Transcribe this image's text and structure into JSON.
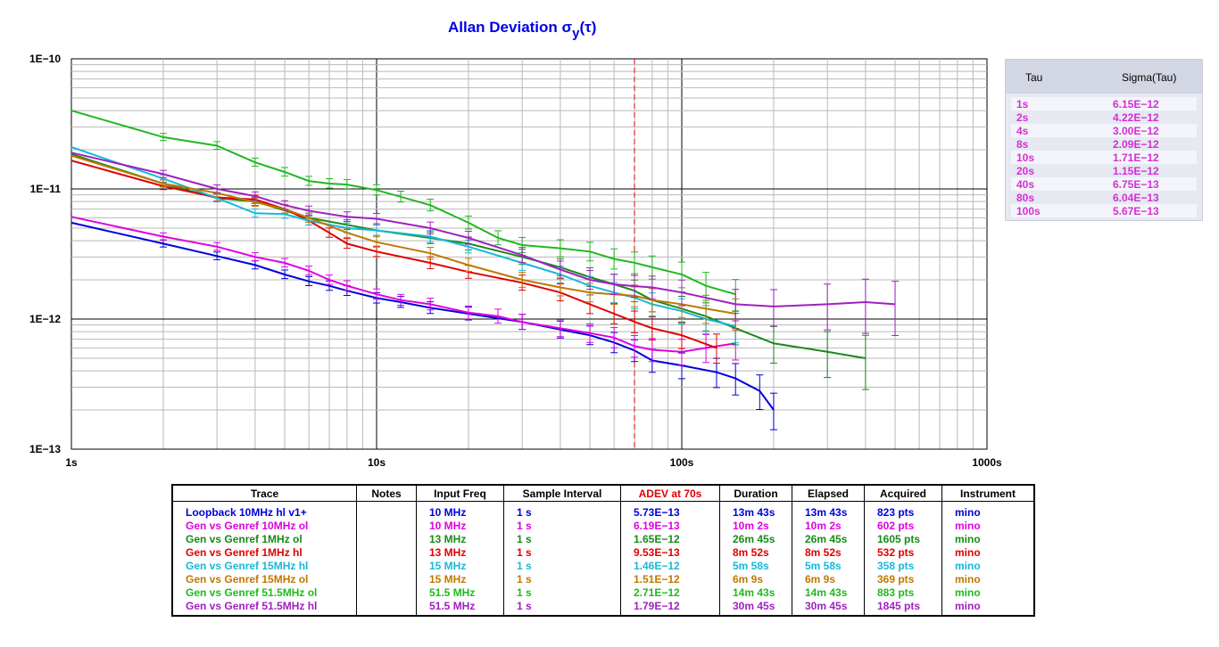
{
  "chart_data": {
    "type": "line",
    "title_main": "Allan Deviation σ",
    "title_sub": "y",
    "title_suffix": "(τ)",
    "x_scale": "log",
    "y_scale": "log",
    "xlim": [
      1,
      1000
    ],
    "ylim": [
      1e-13,
      1e-10
    ],
    "x_tick_labels": [
      "1s",
      "10s",
      "100s",
      "1000s"
    ],
    "y_tick_labels": [
      "1E−10",
      "1E−11",
      "1E−12",
      "1E−13"
    ],
    "marker_line_tau": 70,
    "grid": true,
    "series": [
      {
        "name": "Loopback 10MHz hl v1+",
        "color": "#0000dd",
        "x": [
          1,
          2,
          3,
          4,
          5,
          6,
          7,
          8,
          10,
          12,
          15,
          20,
          30,
          40,
          50,
          60,
          70,
          80,
          100,
          130,
          150,
          180,
          200
        ],
        "y": [
          5.5e-12,
          3.8e-12,
          3.05e-12,
          2.6e-12,
          2.2e-12,
          1.95e-12,
          1.8e-12,
          1.65e-12,
          1.45e-12,
          1.35e-12,
          1.22e-12,
          1.1e-12,
          9.5e-13,
          8.3e-13,
          7.5e-13,
          6.6e-13,
          5.73e-13,
          4.8e-13,
          4.4e-13,
          3.9e-13,
          3.5e-13,
          2.8e-13,
          2e-13
        ]
      },
      {
        "name": "Gen vs Genref 10MHz ol",
        "color": "#e000e0",
        "x": [
          1,
          2,
          3,
          4,
          5,
          6,
          7,
          8,
          10,
          12,
          15,
          20,
          25,
          30,
          40,
          50,
          60,
          70,
          80,
          100,
          120,
          150
        ],
        "y": [
          6.1e-12,
          4.3e-12,
          3.6e-12,
          3e-12,
          2.7e-12,
          2.35e-12,
          2e-12,
          1.8e-12,
          1.55e-12,
          1.4e-12,
          1.3e-12,
          1.12e-12,
          1.05e-12,
          9.5e-13,
          8.5e-13,
          7.8e-13,
          7.2e-13,
          6.19e-13,
          5.8e-13,
          5.6e-13,
          6e-13,
          6.5e-13
        ]
      },
      {
        "name": "Gen vs Genref 1MHz ol",
        "color": "#1a8a1a",
        "x": [
          1,
          2,
          3,
          4,
          6,
          8,
          10,
          15,
          20,
          30,
          40,
          50,
          60,
          70,
          80,
          100,
          120,
          150,
          200,
          300,
          400
        ],
        "y": [
          1.85e-11,
          1.1e-11,
          8.5e-12,
          8e-12,
          6e-12,
          5.3e-12,
          4.8e-12,
          4.2e-12,
          3.8e-12,
          3e-12,
          2.5e-12,
          2.1e-12,
          1.85e-12,
          1.65e-12,
          1.4e-12,
          1.2e-12,
          1.05e-12,
          8.5e-13,
          6.5e-13,
          5.6e-13,
          5e-13
        ]
      },
      {
        "name": "Gen vs Genref 1MHz hl",
        "color": "#e00000",
        "x": [
          1,
          2,
          3,
          4,
          5,
          6,
          7,
          8,
          10,
          15,
          20,
          30,
          40,
          50,
          60,
          70,
          80,
          100,
          130
        ],
        "y": [
          1.65e-11,
          1.05e-11,
          8.6e-12,
          8.3e-12,
          7e-12,
          5.7e-12,
          4.6e-12,
          3.8e-12,
          3.3e-12,
          2.7e-12,
          2.3e-12,
          1.9e-12,
          1.6e-12,
          1.3e-12,
          1.1e-12,
          9.53e-13,
          8.5e-13,
          7.5e-13,
          6e-13
        ]
      },
      {
        "name": "Gen vs Genref 15MHz hl",
        "color": "#18b8d8",
        "x": [
          1,
          2,
          3,
          4,
          5,
          6,
          8,
          10,
          15,
          20,
          30,
          40,
          50,
          60,
          70,
          80,
          100,
          120,
          150
        ],
        "y": [
          2.1e-11,
          1.2e-11,
          8.5e-12,
          6.5e-12,
          6.4e-12,
          5.7e-12,
          5e-12,
          4.8e-12,
          4.3e-12,
          3.6e-12,
          2.7e-12,
          2.2e-12,
          1.8e-12,
          1.6e-12,
          1.46e-12,
          1.3e-12,
          1.15e-12,
          1e-12,
          8.8e-13
        ]
      },
      {
        "name": "Gen vs Genref 15MHz ol",
        "color": "#c07800",
        "x": [
          1,
          2,
          3,
          4,
          5,
          6,
          8,
          10,
          15,
          20,
          30,
          40,
          50,
          60,
          70,
          80,
          100,
          120,
          150
        ],
        "y": [
          1.8e-11,
          1.1e-11,
          9.3e-12,
          7.9e-12,
          7e-12,
          6e-12,
          4.6e-12,
          3.9e-12,
          3.2e-12,
          2.6e-12,
          2e-12,
          1.75e-12,
          1.6e-12,
          1.55e-12,
          1.51e-12,
          1.4e-12,
          1.3e-12,
          1.2e-12,
          1.1e-12
        ]
      },
      {
        "name": "Gen vs Genref 51.5MHz ol",
        "color": "#20b820",
        "x": [
          1,
          2,
          3,
          4,
          5,
          6,
          7,
          8,
          10,
          12,
          15,
          20,
          25,
          30,
          40,
          50,
          60,
          70,
          80,
          100,
          120,
          150
        ],
        "y": [
          4e-11,
          2.5e-11,
          2.15e-11,
          1.6e-11,
          1.35e-11,
          1.15e-11,
          1.1e-11,
          1.08e-11,
          9.8e-12,
          8.7e-12,
          7.5e-12,
          5.5e-12,
          4.2e-12,
          3.7e-12,
          3.5e-12,
          3.3e-12,
          2.9e-12,
          2.71e-12,
          2.5e-12,
          2.2e-12,
          1.8e-12,
          1.55e-12
        ]
      },
      {
        "name": "Gen vs Genref 51.5MHz hl",
        "color": "#a020c0",
        "x": [
          1,
          2,
          3,
          4,
          5,
          6,
          8,
          10,
          15,
          20,
          30,
          40,
          50,
          60,
          70,
          80,
          100,
          150,
          200,
          300,
          400,
          500
        ],
        "y": [
          1.9e-11,
          1.3e-11,
          1e-11,
          8.8e-12,
          7.5e-12,
          6.8e-12,
          6.1e-12,
          5.9e-12,
          5e-12,
          4.2e-12,
          3.1e-12,
          2.4e-12,
          2e-12,
          1.85e-12,
          1.79e-12,
          1.75e-12,
          1.6e-12,
          1.3e-12,
          1.25e-12,
          1.3e-12,
          1.35e-12,
          1.3e-12
        ]
      }
    ]
  },
  "side_panel": {
    "col_tau": "Tau",
    "col_sigma": "Sigma(Tau)",
    "rows": [
      {
        "tau": "1s",
        "sigma": "6.15E−12"
      },
      {
        "tau": "2s",
        "sigma": "4.22E−12"
      },
      {
        "tau": "4s",
        "sigma": "3.00E−12"
      },
      {
        "tau": "8s",
        "sigma": "2.09E−12"
      },
      {
        "tau": "10s",
        "sigma": "1.71E−12"
      },
      {
        "tau": "20s",
        "sigma": "1.15E−12"
      },
      {
        "tau": "40s",
        "sigma": "6.75E−13"
      },
      {
        "tau": "80s",
        "sigma": "6.04E−13"
      },
      {
        "tau": "100s",
        "sigma": "5.67E−13"
      }
    ],
    "text_color": "#d32fd3"
  },
  "legend_table": {
    "headers": [
      "Trace",
      "Notes",
      "Input Freq",
      "Sample Interval",
      "ADEV at 70s",
      "Duration",
      "Elapsed",
      "Acquired",
      "Instrument"
    ],
    "adev_header_color": "#e00000",
    "rows": [
      {
        "color": "#0000dd",
        "cells": [
          "Loopback 10MHz hl v1+",
          "",
          "10 MHz",
          "1 s",
          "5.73E−13",
          "13m 43s",
          "13m 43s",
          "823 pts",
          "mino"
        ]
      },
      {
        "color": "#e000e0",
        "cells": [
          "Gen vs Genref 10MHz ol",
          "",
          "10 MHz",
          "1 s",
          "6.19E−13",
          "10m 2s",
          "10m 2s",
          "602 pts",
          "mino"
        ]
      },
      {
        "color": "#1a8a1a",
        "cells": [
          "Gen vs Genref 1MHz ol",
          "",
          "13 MHz",
          "1 s",
          "1.65E−12",
          "26m 45s",
          "26m 45s",
          "1605 pts",
          "mino"
        ]
      },
      {
        "color": "#e00000",
        "cells": [
          "Gen vs Genref 1MHz hl",
          "",
          "13 MHz",
          "1 s",
          "9.53E−13",
          "8m 52s",
          "8m 52s",
          "532 pts",
          "mino"
        ]
      },
      {
        "color": "#18b8d8",
        "cells": [
          "Gen vs Genref 15MHz hl",
          "",
          "15 MHz",
          "1 s",
          "1.46E−12",
          "5m 58s",
          "5m 58s",
          "358 pts",
          "mino"
        ]
      },
      {
        "color": "#c07800",
        "cells": [
          "Gen vs Genref 15MHz ol",
          "",
          "15 MHz",
          "1 s",
          "1.51E−12",
          "6m 9s",
          "6m 9s",
          "369 pts",
          "mino"
        ]
      },
      {
        "color": "#20b820",
        "cells": [
          "Gen vs Genref 51.5MHz ol",
          "",
          "51.5 MHz",
          "1 s",
          "2.71E−12",
          "14m 43s",
          "14m 43s",
          "883 pts",
          "mino"
        ]
      },
      {
        "color": "#a020c0",
        "cells": [
          "Gen vs Genref 51.5MHz hl",
          "",
          "51.5 MHz",
          "1 s",
          "1.79E−12",
          "30m 45s",
          "30m 45s",
          "1845 pts",
          "mino"
        ]
      }
    ]
  }
}
